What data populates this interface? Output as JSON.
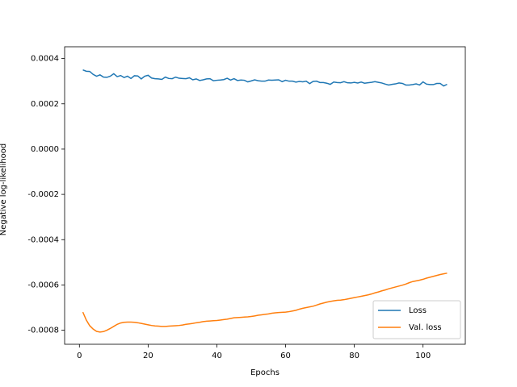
{
  "chart_data": {
    "type": "line",
    "xlabel": "Epochs",
    "ylabel": "Negative log-likelihood",
    "x": [
      1,
      2,
      3,
      4,
      5,
      6,
      7,
      8,
      9,
      10,
      11,
      12,
      13,
      14,
      15,
      16,
      17,
      18,
      19,
      20,
      21,
      22,
      23,
      24,
      25,
      26,
      27,
      28,
      29,
      30,
      31,
      32,
      33,
      34,
      35,
      36,
      37,
      38,
      39,
      40,
      41,
      42,
      43,
      44,
      45,
      46,
      47,
      48,
      49,
      50,
      51,
      52,
      53,
      54,
      55,
      56,
      57,
      58,
      59,
      60,
      61,
      62,
      63,
      64,
      65,
      66,
      67,
      68,
      69,
      70,
      71,
      72,
      73,
      74,
      75,
      76,
      77,
      78,
      79,
      80,
      81,
      82,
      83,
      84,
      85,
      86,
      87,
      88,
      89,
      90,
      91,
      92,
      93,
      94,
      95,
      96,
      97,
      98,
      99,
      100,
      101,
      102,
      103,
      104,
      105,
      106,
      107
    ],
    "series": [
      {
        "name": "Loss",
        "color": "#1f77b4",
        "values": [
          0.00035,
          0.000344,
          0.000343,
          0.00033,
          0.000322,
          0.000328,
          0.000318,
          0.000317,
          0.000322,
          0.000333,
          0.00032,
          0.000325,
          0.000316,
          0.000322,
          0.000312,
          0.000324,
          0.000323,
          0.00031,
          0.000322,
          0.000326,
          0.000314,
          0.000311,
          0.00031,
          0.000308,
          0.000318,
          0.000312,
          0.000311,
          0.000318,
          0.000313,
          0.000312,
          0.000311,
          0.000315,
          0.000306,
          0.00031,
          0.000303,
          0.000306,
          0.00031,
          0.000311,
          0.000302,
          0.000304,
          0.000305,
          0.000307,
          0.000313,
          0.000305,
          0.000311,
          0.000303,
          0.000305,
          0.000304,
          0.000297,
          0.000301,
          0.000306,
          0.000302,
          0.0003,
          0.0003,
          0.000305,
          0.000304,
          0.000305,
          0.000306,
          0.000298,
          0.000304,
          0.0003,
          0.0003,
          0.000296,
          0.000299,
          0.000297,
          0.0003,
          0.000289,
          0.000299,
          0.0003,
          0.000294,
          0.000294,
          0.000291,
          0.000286,
          0.000296,
          0.000294,
          0.000293,
          0.000298,
          0.000293,
          0.000292,
          0.000295,
          0.000292,
          0.000296,
          0.000291,
          0.000293,
          0.000295,
          0.000298,
          0.000295,
          0.000292,
          0.000287,
          0.000283,
          0.000286,
          0.000288,
          0.000292,
          0.00029,
          0.000283,
          0.000283,
          0.000285,
          0.000288,
          0.000283,
          0.000297,
          0.000287,
          0.000285,
          0.000285,
          0.00029,
          0.00029,
          0.000279,
          0.000286
        ]
      },
      {
        "name": "Val. loss",
        "color": "#ff7f0e",
        "values": [
          -0.00072,
          -0.000755,
          -0.00078,
          -0.000795,
          -0.000805,
          -0.000808,
          -0.000806,
          -0.0008,
          -0.000792,
          -0.000783,
          -0.000774,
          -0.000768,
          -0.000765,
          -0.000764,
          -0.000764,
          -0.000765,
          -0.000767,
          -0.00077,
          -0.000773,
          -0.000776,
          -0.000779,
          -0.000781,
          -0.000782,
          -0.000783,
          -0.000783,
          -0.000782,
          -0.000781,
          -0.00078,
          -0.000779,
          -0.000777,
          -0.000774,
          -0.000772,
          -0.00077,
          -0.000767,
          -0.000765,
          -0.000762,
          -0.00076,
          -0.000759,
          -0.000758,
          -0.000757,
          -0.000755,
          -0.000753,
          -0.000751,
          -0.000748,
          -0.000745,
          -0.000744,
          -0.000743,
          -0.000742,
          -0.000741,
          -0.000739,
          -0.000737,
          -0.000734,
          -0.000732,
          -0.00073,
          -0.000728,
          -0.000725,
          -0.000723,
          -0.000722,
          -0.000721,
          -0.00072,
          -0.000718,
          -0.000715,
          -0.000712,
          -0.000707,
          -0.000703,
          -0.0007,
          -0.000697,
          -0.000694,
          -0.000689,
          -0.000684,
          -0.00068,
          -0.000676,
          -0.000673,
          -0.00067,
          -0.000668,
          -0.000667,
          -0.000665,
          -0.000662,
          -0.000659,
          -0.000656,
          -0.000653,
          -0.00065,
          -0.000647,
          -0.000644,
          -0.00064,
          -0.000635,
          -0.000631,
          -0.000626,
          -0.000622,
          -0.000617,
          -0.000613,
          -0.000609,
          -0.000605,
          -0.000601,
          -0.000596,
          -0.00059,
          -0.000585,
          -0.000582,
          -0.000579,
          -0.000575,
          -0.00057,
          -0.000566,
          -0.000562,
          -0.000558,
          -0.000554,
          -0.000551,
          -0.000548
        ]
      }
    ],
    "xlim": [
      -4.3,
      112.3
    ],
    "ylim": [
      -0.000862,
      0.000452
    ],
    "xticks": [
      0,
      20,
      40,
      60,
      80,
      100
    ],
    "yticks": [
      -0.0008,
      -0.0006,
      -0.0004,
      -0.0002,
      {
        "value": 0,
        "label": "0.0000"
      },
      0.0002,
      0.0004
    ],
    "legend": "lower right"
  }
}
